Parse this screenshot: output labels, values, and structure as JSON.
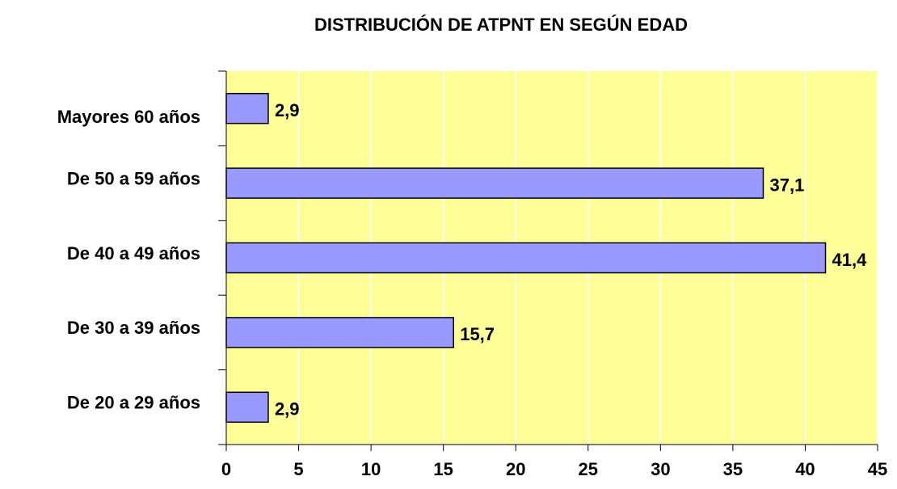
{
  "chart_data": {
    "type": "barh",
    "title": "DISTRIBUCIÓN DE ATPNT EN SEGÚN EDAD",
    "categories": [
      "Mayores 60 años",
      "De 50 a 59 años",
      "De 40 a 49 años",
      "De 30 a 39 años",
      "De 20 a 29 años"
    ],
    "values": [
      2.9,
      37.1,
      41.4,
      15.7,
      2.9
    ],
    "value_labels": [
      "2,9",
      "37,1",
      "41,4",
      "15,7",
      "2,9"
    ],
    "color": "#9999ff",
    "xlim": [
      0,
      45
    ],
    "xticks": [
      0,
      5,
      10,
      15,
      20,
      25,
      30,
      35,
      40,
      45
    ],
    "grid": true
  }
}
